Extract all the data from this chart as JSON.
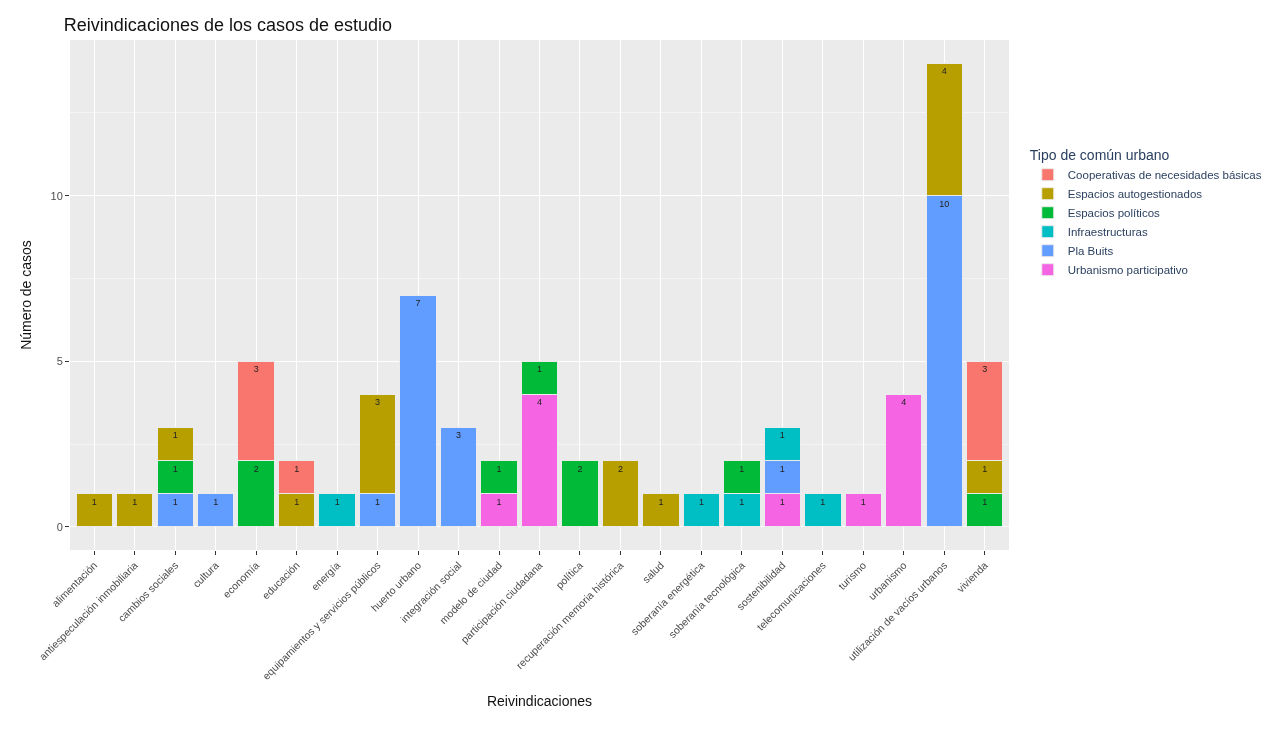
{
  "chart_data": {
    "type": "bar",
    "title": "Reivindicaciones de los casos de estudio",
    "xlabel": "Reivindicaciones",
    "ylabel": "Número de casos",
    "legend_title": "Tipo de común urbano",
    "categories": [
      "alimentación",
      "antiespeculación inmobiliaria",
      "cambios sociales",
      "cultura",
      "economía",
      "educación",
      "energía",
      "equipamientos y servicios públicos",
      "huerto urbano",
      "integración social",
      "modelo de ciudad",
      "participación ciudadana",
      "política",
      "recuperación memoria histórica",
      "salud",
      "soberanía energética",
      "soberanía tecnológica",
      "sostenibilidad",
      "telecomunicaciones",
      "turismo",
      "urbanismo",
      "utilización de vacíos urbanos",
      "vivienda"
    ],
    "stacked": true,
    "data_labels": true,
    "grid": true,
    "legend": "right",
    "ylim": [
      -0.7,
      14.7
    ],
    "yticks": [
      0,
      5,
      10
    ],
    "series": [
      {
        "name": "Urbanismo participativo",
        "color": "#f564e3",
        "values": [
          null,
          null,
          null,
          null,
          null,
          null,
          null,
          null,
          null,
          null,
          1,
          4,
          null,
          null,
          null,
          null,
          null,
          1,
          null,
          1,
          4,
          null,
          null
        ]
      },
      {
        "name": "Pla Buits",
        "color": "#619cff",
        "values": [
          null,
          null,
          1,
          1,
          null,
          null,
          null,
          1,
          7,
          3,
          null,
          null,
          null,
          null,
          null,
          null,
          null,
          1,
          null,
          null,
          null,
          10,
          null
        ]
      },
      {
        "name": "Infraestructuras",
        "color": "#00bfc4",
        "values": [
          null,
          null,
          null,
          null,
          null,
          null,
          1,
          null,
          null,
          null,
          null,
          null,
          null,
          null,
          null,
          1,
          1,
          1,
          1,
          null,
          null,
          null,
          null
        ]
      },
      {
        "name": "Espacios políticos",
        "color": "#00ba38",
        "values": [
          null,
          null,
          1,
          null,
          2,
          null,
          null,
          null,
          null,
          null,
          1,
          1,
          2,
          null,
          null,
          null,
          1,
          null,
          null,
          null,
          null,
          null,
          1
        ]
      },
      {
        "name": "Espacios autogestionados",
        "color": "#b79f00",
        "values": [
          1,
          1,
          1,
          null,
          null,
          1,
          null,
          3,
          null,
          null,
          null,
          null,
          null,
          2,
          1,
          null,
          null,
          null,
          null,
          null,
          null,
          4,
          1
        ]
      },
      {
        "name": "Cooperativas de necesidades básicas",
        "color": "#f8766d",
        "values": [
          null,
          null,
          null,
          null,
          3,
          1,
          null,
          null,
          null,
          null,
          null,
          null,
          null,
          null,
          null,
          null,
          null,
          null,
          null,
          null,
          null,
          null,
          3
        ]
      }
    ]
  }
}
